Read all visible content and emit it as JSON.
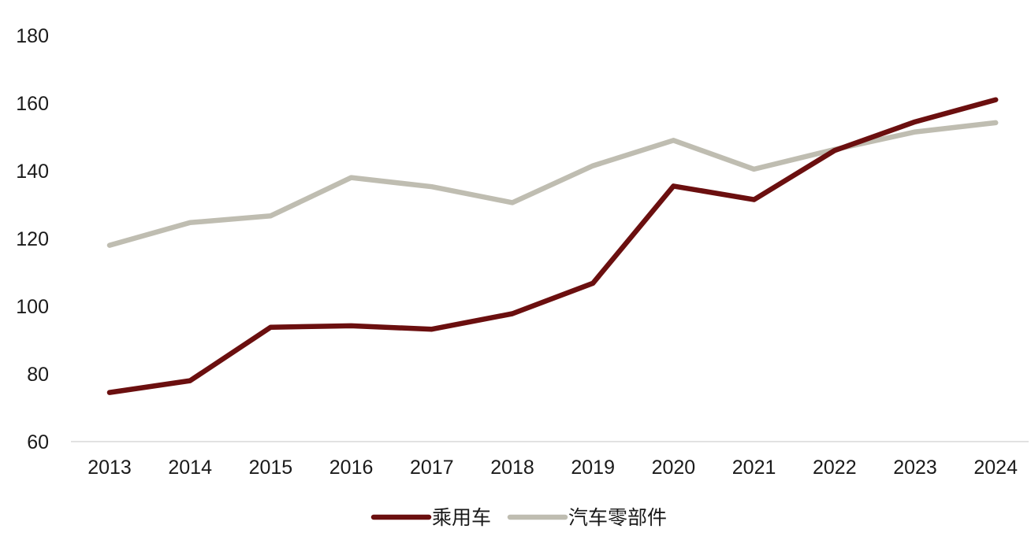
{
  "chart_data": {
    "type": "line",
    "title": "",
    "xlabel": "",
    "ylabel": "",
    "categories": [
      "2013",
      "2014",
      "2015",
      "2016",
      "2017",
      "2018",
      "2019",
      "2020",
      "2021",
      "2022",
      "2023",
      "2024"
    ],
    "series": [
      {
        "name": "乘用车",
        "color": "#6b0f0f",
        "values": [
          74.5,
          78,
          93.8,
          94.2,
          93.2,
          97.8,
          106.8,
          135.5,
          131.5,
          146,
          154.5,
          161
        ]
      },
      {
        "name": "汽车零部件",
        "color": "#bfbdb1",
        "values": [
          118,
          124.7,
          126.7,
          138,
          135.3,
          130.6,
          141.5,
          149,
          140.5,
          146.3,
          151.5,
          154.2
        ]
      }
    ],
    "ylim": [
      60,
      180
    ],
    "yticks": [
      60,
      80,
      100,
      120,
      140,
      160,
      180
    ],
    "grid": false,
    "legend_position": "bottom"
  }
}
